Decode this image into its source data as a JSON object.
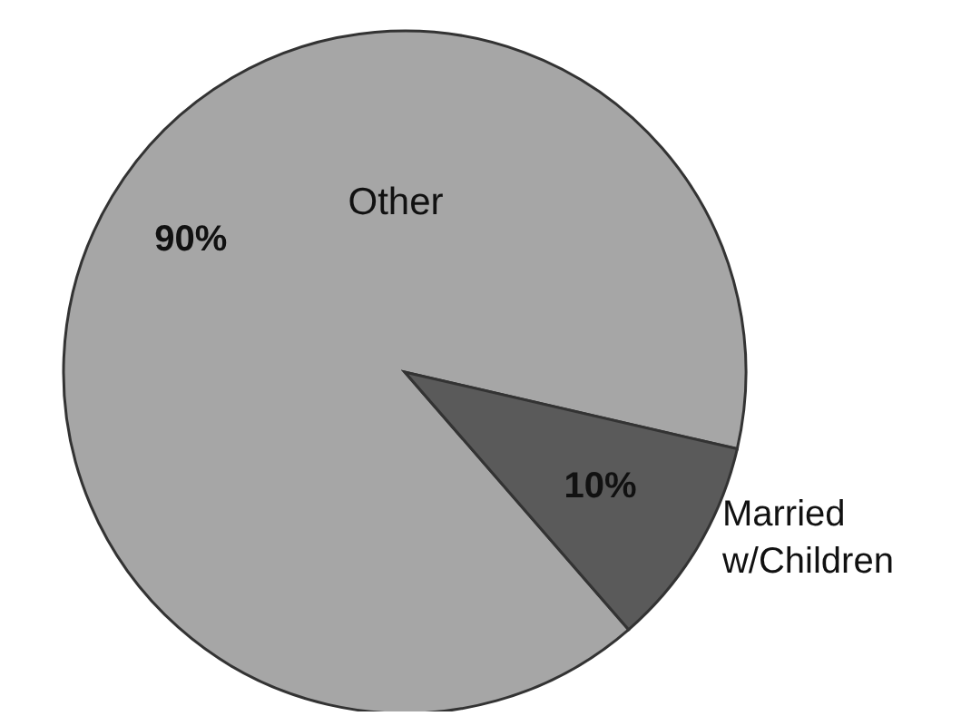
{
  "chart_data": {
    "type": "pie",
    "categories": [
      "Other",
      "Married w/Children"
    ],
    "values": [
      90,
      10
    ],
    "colors": [
      "#a6a6a6",
      "#5a5a5a"
    ],
    "value_labels": [
      "90%",
      "10%"
    ],
    "legend": false
  }
}
